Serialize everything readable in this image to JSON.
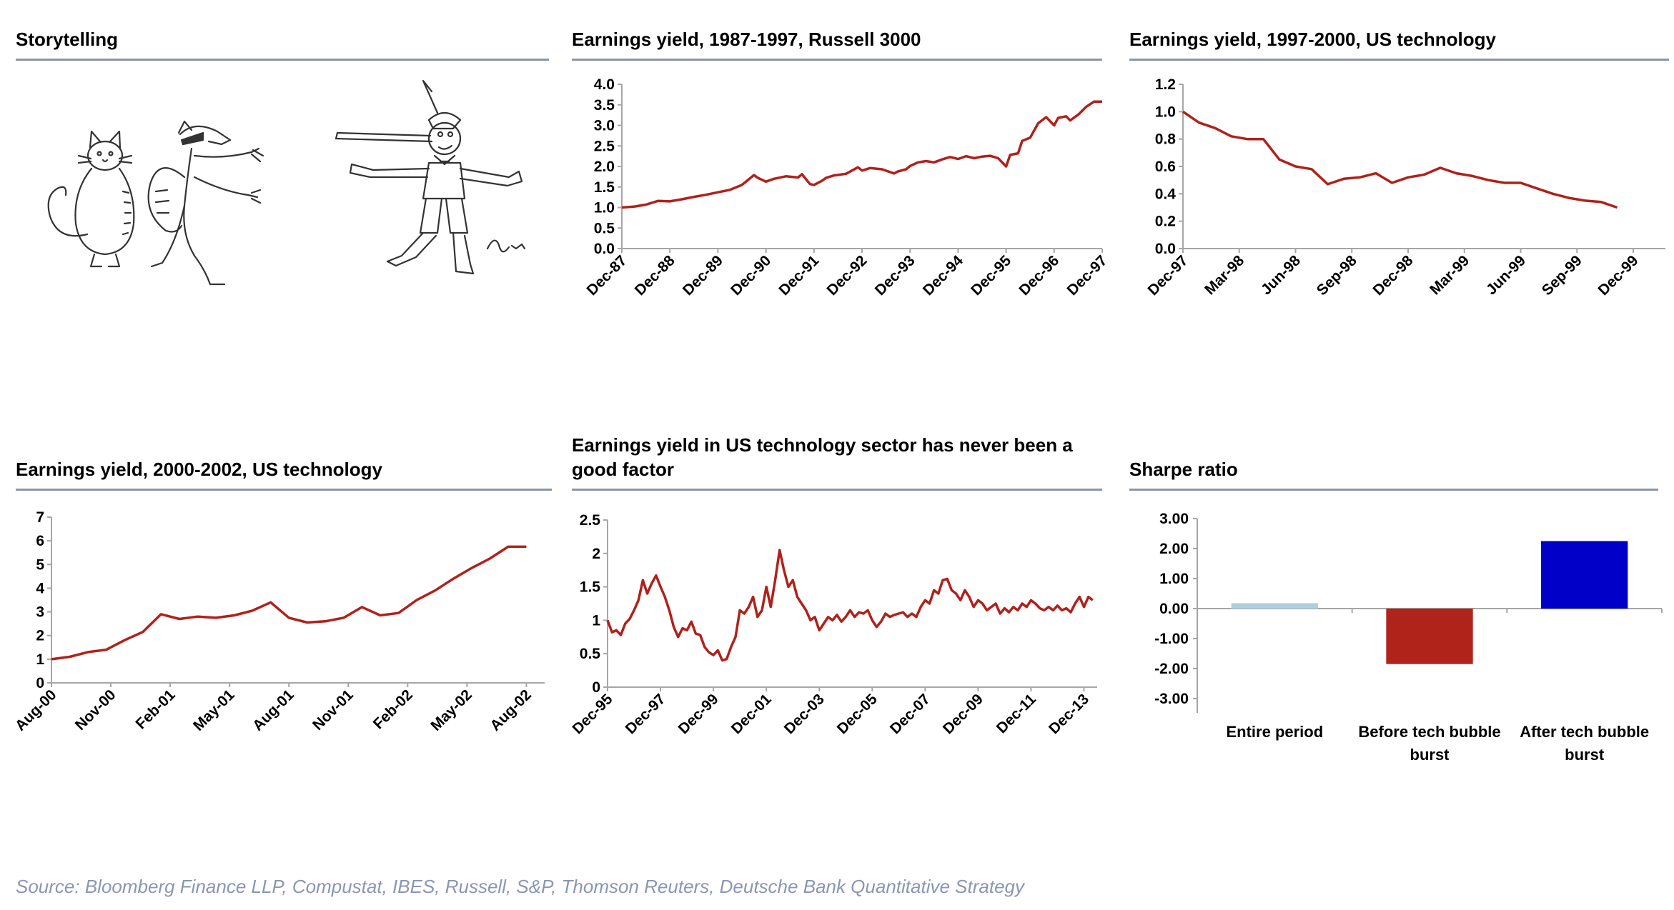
{
  "panels": {
    "storytelling": {
      "title": "Storytelling",
      "signature": "Efim"
    },
    "ey_russell": {
      "title": "Earnings yield, 1987-1997, Russell 3000"
    },
    "ey_tech_9700": {
      "title": "Earnings yield, 1997-2000, US technology"
    },
    "ey_tech_0002": {
      "title": "Earnings yield, 2000-2002, US technology"
    },
    "ey_tech_factor": {
      "title": "Earnings yield in US technology sector has never been a good factor"
    },
    "sharpe": {
      "title": "Sharpe ratio"
    }
  },
  "source": "Source: Bloomberg Finance LLP, Compustat, IBES, Russell, S&P, Thomson Reuters, Deutsche Bank Quantitative Strategy",
  "colors": {
    "line": "#b0211b",
    "axis": "#a6a6a6",
    "rule": "#8b95a8",
    "bar_entire": "#aecfdc",
    "bar_before": "#b0231b",
    "bar_after": "#0000c8"
  },
  "chart_data": [
    {
      "id": "ey_russell",
      "type": "line",
      "title": "Earnings yield, 1987-1997, Russell 3000",
      "ylim": [
        0,
        4
      ],
      "yticks": [
        "0.0",
        "0.5",
        "1.0",
        "1.5",
        "2.0",
        "2.5",
        "3.0",
        "3.5",
        "4.0"
      ],
      "xlim": [
        0,
        120
      ],
      "xticks": [
        "Dec-87",
        "Dec-88",
        "Dec-89",
        "Dec-90",
        "Dec-91",
        "Dec-92",
        "Dec-93",
        "Dec-94",
        "Dec-95",
        "Dec-96",
        "Dec-97"
      ],
      "x": [
        0,
        3,
        6,
        9,
        12,
        15,
        18,
        21,
        24,
        27,
        30,
        33,
        34,
        36,
        38,
        41,
        44,
        45,
        47,
        48,
        50,
        51,
        53,
        56,
        59,
        60,
        62,
        65,
        68,
        69,
        71,
        72,
        74,
        76,
        78,
        80,
        82,
        84,
        86,
        88,
        90,
        92,
        94,
        96,
        97,
        99,
        100,
        102,
        104,
        106,
        108,
        109,
        111,
        112,
        114,
        116,
        118,
        120
      ],
      "y": [
        1.0,
        1.02,
        1.07,
        1.16,
        1.15,
        1.2,
        1.26,
        1.31,
        1.37,
        1.43,
        1.55,
        1.79,
        1.72,
        1.63,
        1.7,
        1.76,
        1.73,
        1.81,
        1.57,
        1.55,
        1.65,
        1.72,
        1.78,
        1.82,
        1.98,
        1.9,
        1.96,
        1.93,
        1.83,
        1.88,
        1.93,
        2.01,
        2.1,
        2.13,
        2.1,
        2.17,
        2.23,
        2.18,
        2.25,
        2.2,
        2.24,
        2.26,
        2.2,
        2.0,
        2.28,
        2.32,
        2.62,
        2.7,
        3.05,
        3.2,
        3.0,
        3.18,
        3.22,
        3.12,
        3.26,
        3.45,
        3.58,
        3.58
      ]
    },
    {
      "id": "ey_tech_9700",
      "type": "line",
      "title": "Earnings yield, 1997-2000, US technology",
      "ylim": [
        0,
        1.2
      ],
      "yticks": [
        "0.0",
        "0.2",
        "0.4",
        "0.6",
        "0.8",
        "1.0",
        "1.2"
      ],
      "xlim": [
        0,
        30
      ],
      "xticks": [
        "Dec-97",
        "Mar-98",
        "Jun-98",
        "Sep-98",
        "Dec-98",
        "Mar-99",
        "Jun-99",
        "Sep-99",
        "Dec-99"
      ],
      "x": [
        0,
        1,
        2,
        3,
        4,
        5,
        6,
        7,
        8,
        9,
        10,
        11,
        12,
        13,
        14,
        15,
        16,
        17,
        18,
        19,
        20,
        21,
        22,
        23,
        24,
        25,
        26,
        27
      ],
      "y": [
        1.0,
        0.92,
        0.88,
        0.82,
        0.8,
        0.8,
        0.65,
        0.6,
        0.58,
        0.47,
        0.51,
        0.52,
        0.55,
        0.48,
        0.52,
        0.54,
        0.59,
        0.55,
        0.53,
        0.5,
        0.48,
        0.48,
        0.44,
        0.4,
        0.37,
        0.35,
        0.34,
        0.3
      ]
    },
    {
      "id": "ey_tech_0002",
      "type": "line",
      "title": "Earnings yield, 2000-2002, US technology",
      "ylim": [
        0,
        7
      ],
      "yticks": [
        "0",
        "1",
        "2",
        "3",
        "4",
        "5",
        "6",
        "7"
      ],
      "xlim": [
        0,
        27
      ],
      "xticks": [
        "Aug-00",
        "Nov-00",
        "Feb-01",
        "May-01",
        "Aug-01",
        "Nov-01",
        "Feb-02",
        "May-02",
        "Aug-02"
      ],
      "x": [
        0,
        1,
        2,
        3,
        4,
        5,
        6,
        7,
        8,
        9,
        10,
        11,
        12,
        13,
        14,
        15,
        16,
        17,
        18,
        19,
        20,
        21,
        22,
        23,
        24,
        25,
        26
      ],
      "y": [
        1.0,
        1.1,
        1.3,
        1.4,
        1.8,
        2.15,
        2.9,
        2.7,
        2.8,
        2.75,
        2.85,
        3.05,
        3.4,
        2.75,
        2.55,
        2.6,
        2.75,
        3.2,
        2.85,
        2.95,
        3.5,
        3.9,
        4.4,
        4.85,
        5.25,
        5.75,
        5.75
      ]
    },
    {
      "id": "ey_tech_factor",
      "type": "line",
      "title": "Earnings yield in US technology sector has never been a good factor",
      "ylim": [
        0,
        2.5
      ],
      "yticks": [
        "0",
        "0.5",
        "1",
        "1.5",
        "2",
        "2.5"
      ],
      "xlim": [
        0,
        222
      ],
      "xticks": [
        "Dec-95",
        "Dec-97",
        "Dec-99",
        "Dec-01",
        "Dec-03",
        "Dec-05",
        "Dec-07",
        "Dec-09",
        "Dec-11",
        "Dec-13"
      ],
      "x": [
        0,
        2,
        4,
        6,
        8,
        10,
        12,
        14,
        16,
        18,
        20,
        22,
        24,
        26,
        28,
        30,
        32,
        34,
        36,
        38,
        40,
        42,
        44,
        46,
        48,
        50,
        52,
        54,
        56,
        58,
        60,
        62,
        64,
        66,
        68,
        70,
        72,
        74,
        76,
        78,
        80,
        82,
        84,
        86,
        88,
        90,
        92,
        94,
        96,
        98,
        100,
        102,
        104,
        106,
        108,
        110,
        112,
        114,
        116,
        118,
        120,
        122,
        124,
        126,
        128,
        130,
        132,
        134,
        136,
        138,
        140,
        142,
        144,
        146,
        148,
        150,
        152,
        154,
        156,
        158,
        160,
        162,
        164,
        166,
        168,
        170,
        172,
        174,
        176,
        178,
        180,
        182,
        184,
        186,
        188,
        190,
        192,
        194,
        196,
        198,
        200,
        202,
        204,
        206,
        208,
        210,
        212,
        214,
        216,
        218,
        220
      ],
      "y": [
        1.0,
        0.82,
        0.85,
        0.78,
        0.95,
        1.02,
        1.15,
        1.3,
        1.6,
        1.4,
        1.55,
        1.67,
        1.5,
        1.35,
        1.15,
        0.9,
        0.75,
        0.88,
        0.85,
        0.98,
        0.8,
        0.78,
        0.6,
        0.52,
        0.48,
        0.55,
        0.4,
        0.42,
        0.6,
        0.75,
        1.15,
        1.1,
        1.2,
        1.35,
        1.05,
        1.15,
        1.5,
        1.2,
        1.6,
        2.05,
        1.75,
        1.5,
        1.6,
        1.35,
        1.25,
        1.15,
        1.0,
        1.05,
        0.85,
        0.95,
        1.05,
        1.0,
        1.08,
        0.98,
        1.05,
        1.15,
        1.05,
        1.12,
        1.1,
        1.15,
        1.0,
        0.9,
        0.98,
        1.1,
        1.05,
        1.08,
        1.1,
        1.12,
        1.05,
        1.1,
        1.05,
        1.2,
        1.3,
        1.25,
        1.45,
        1.4,
        1.6,
        1.62,
        1.45,
        1.4,
        1.3,
        1.45,
        1.35,
        1.2,
        1.3,
        1.25,
        1.15,
        1.2,
        1.25,
        1.1,
        1.18,
        1.12,
        1.2,
        1.15,
        1.25,
        1.2,
        1.3,
        1.25,
        1.18,
        1.15,
        1.2,
        1.15,
        1.22,
        1.15,
        1.18,
        1.12,
        1.25,
        1.35,
        1.2,
        1.35,
        1.3
      ]
    },
    {
      "id": "sharpe",
      "type": "bar",
      "title": "Sharpe ratio",
      "categories": [
        [
          "Entire period"
        ],
        [
          "Before tech bubble",
          "burst"
        ],
        [
          "After tech bubble",
          "burst"
        ]
      ],
      "values": [
        0.18,
        -1.85,
        2.25
      ],
      "ylim": [
        -3,
        3
      ],
      "yticks": [
        "-3.00",
        "-2.00",
        "-1.00",
        "0.00",
        "1.00",
        "2.00",
        "3.00"
      ]
    }
  ]
}
